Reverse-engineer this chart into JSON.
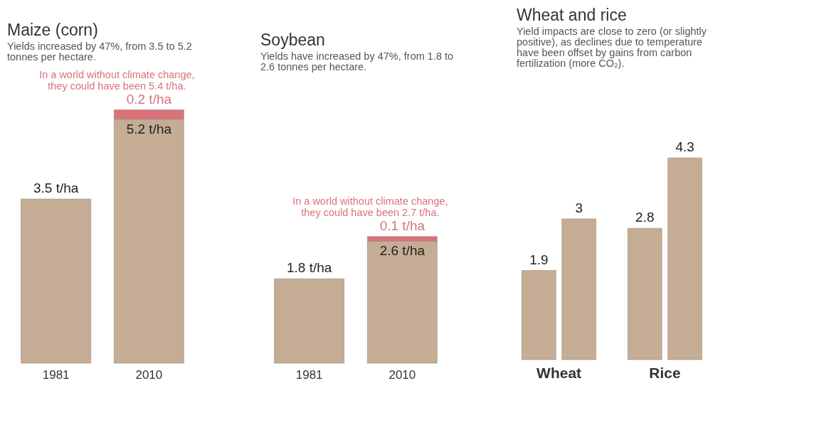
{
  "chart_data": [
    {
      "type": "bar",
      "title": "Maize (corn)",
      "subtitle": "Yields increased by 47%, from 3.5 to 5.2 tonnes per hectare.",
      "categories": [
        "1981",
        "2010"
      ],
      "stacked": true,
      "series": [
        {
          "color": "#c4ad94",
          "values": [
            3.5,
            5.2
          ],
          "value_labels": [
            "3.5 t/ha",
            "5.2 t/ha"
          ]
        },
        {
          "color": "#d9727b",
          "values": [
            null,
            0.2
          ],
          "value_labels": [
            null,
            "0.2 t/ha"
          ]
        }
      ],
      "annotations": [
        {
          "text": "In a world without climate change, they could have been 5.4 t/ha.",
          "x": "2010",
          "y": 5.4
        }
      ]
    },
    {
      "type": "bar",
      "title": "Soybean",
      "subtitle": "Yields have increased by 47%, from 1.8 to 2.6 tonnes per hectare.",
      "categories": [
        "1981",
        "2010"
      ],
      "stacked": true,
      "series": [
        {
          "color": "#c4ad94",
          "values": [
            1.8,
            2.6
          ],
          "value_labels": [
            "1.8 t/ha",
            "2.6 t/ha"
          ]
        },
        {
          "color": "#d9727b",
          "values": [
            null,
            0.1
          ],
          "value_labels": [
            null,
            "0.1 t/ha"
          ]
        }
      ],
      "annotations": [
        {
          "text": "In a world without climate change, they could have been 2.7 t/ha.",
          "x": "2010",
          "y": 2.7
        }
      ]
    },
    {
      "type": "bar",
      "title": "Wheat and rice",
      "subtitle": "Yield impacts are close to zero (or slightly positive), as declines due to temperature have been offset by gains from carbon fertilization (more CO₂).",
      "categories": [
        "Wheat",
        "Rice"
      ],
      "data_labels": true,
      "series": [
        {
          "color": "#c4ad94",
          "values": [
            1.9,
            2.8
          ]
        },
        {
          "color": "#c4ad94",
          "values": [
            3,
            4.3
          ]
        }
      ]
    }
  ]
}
